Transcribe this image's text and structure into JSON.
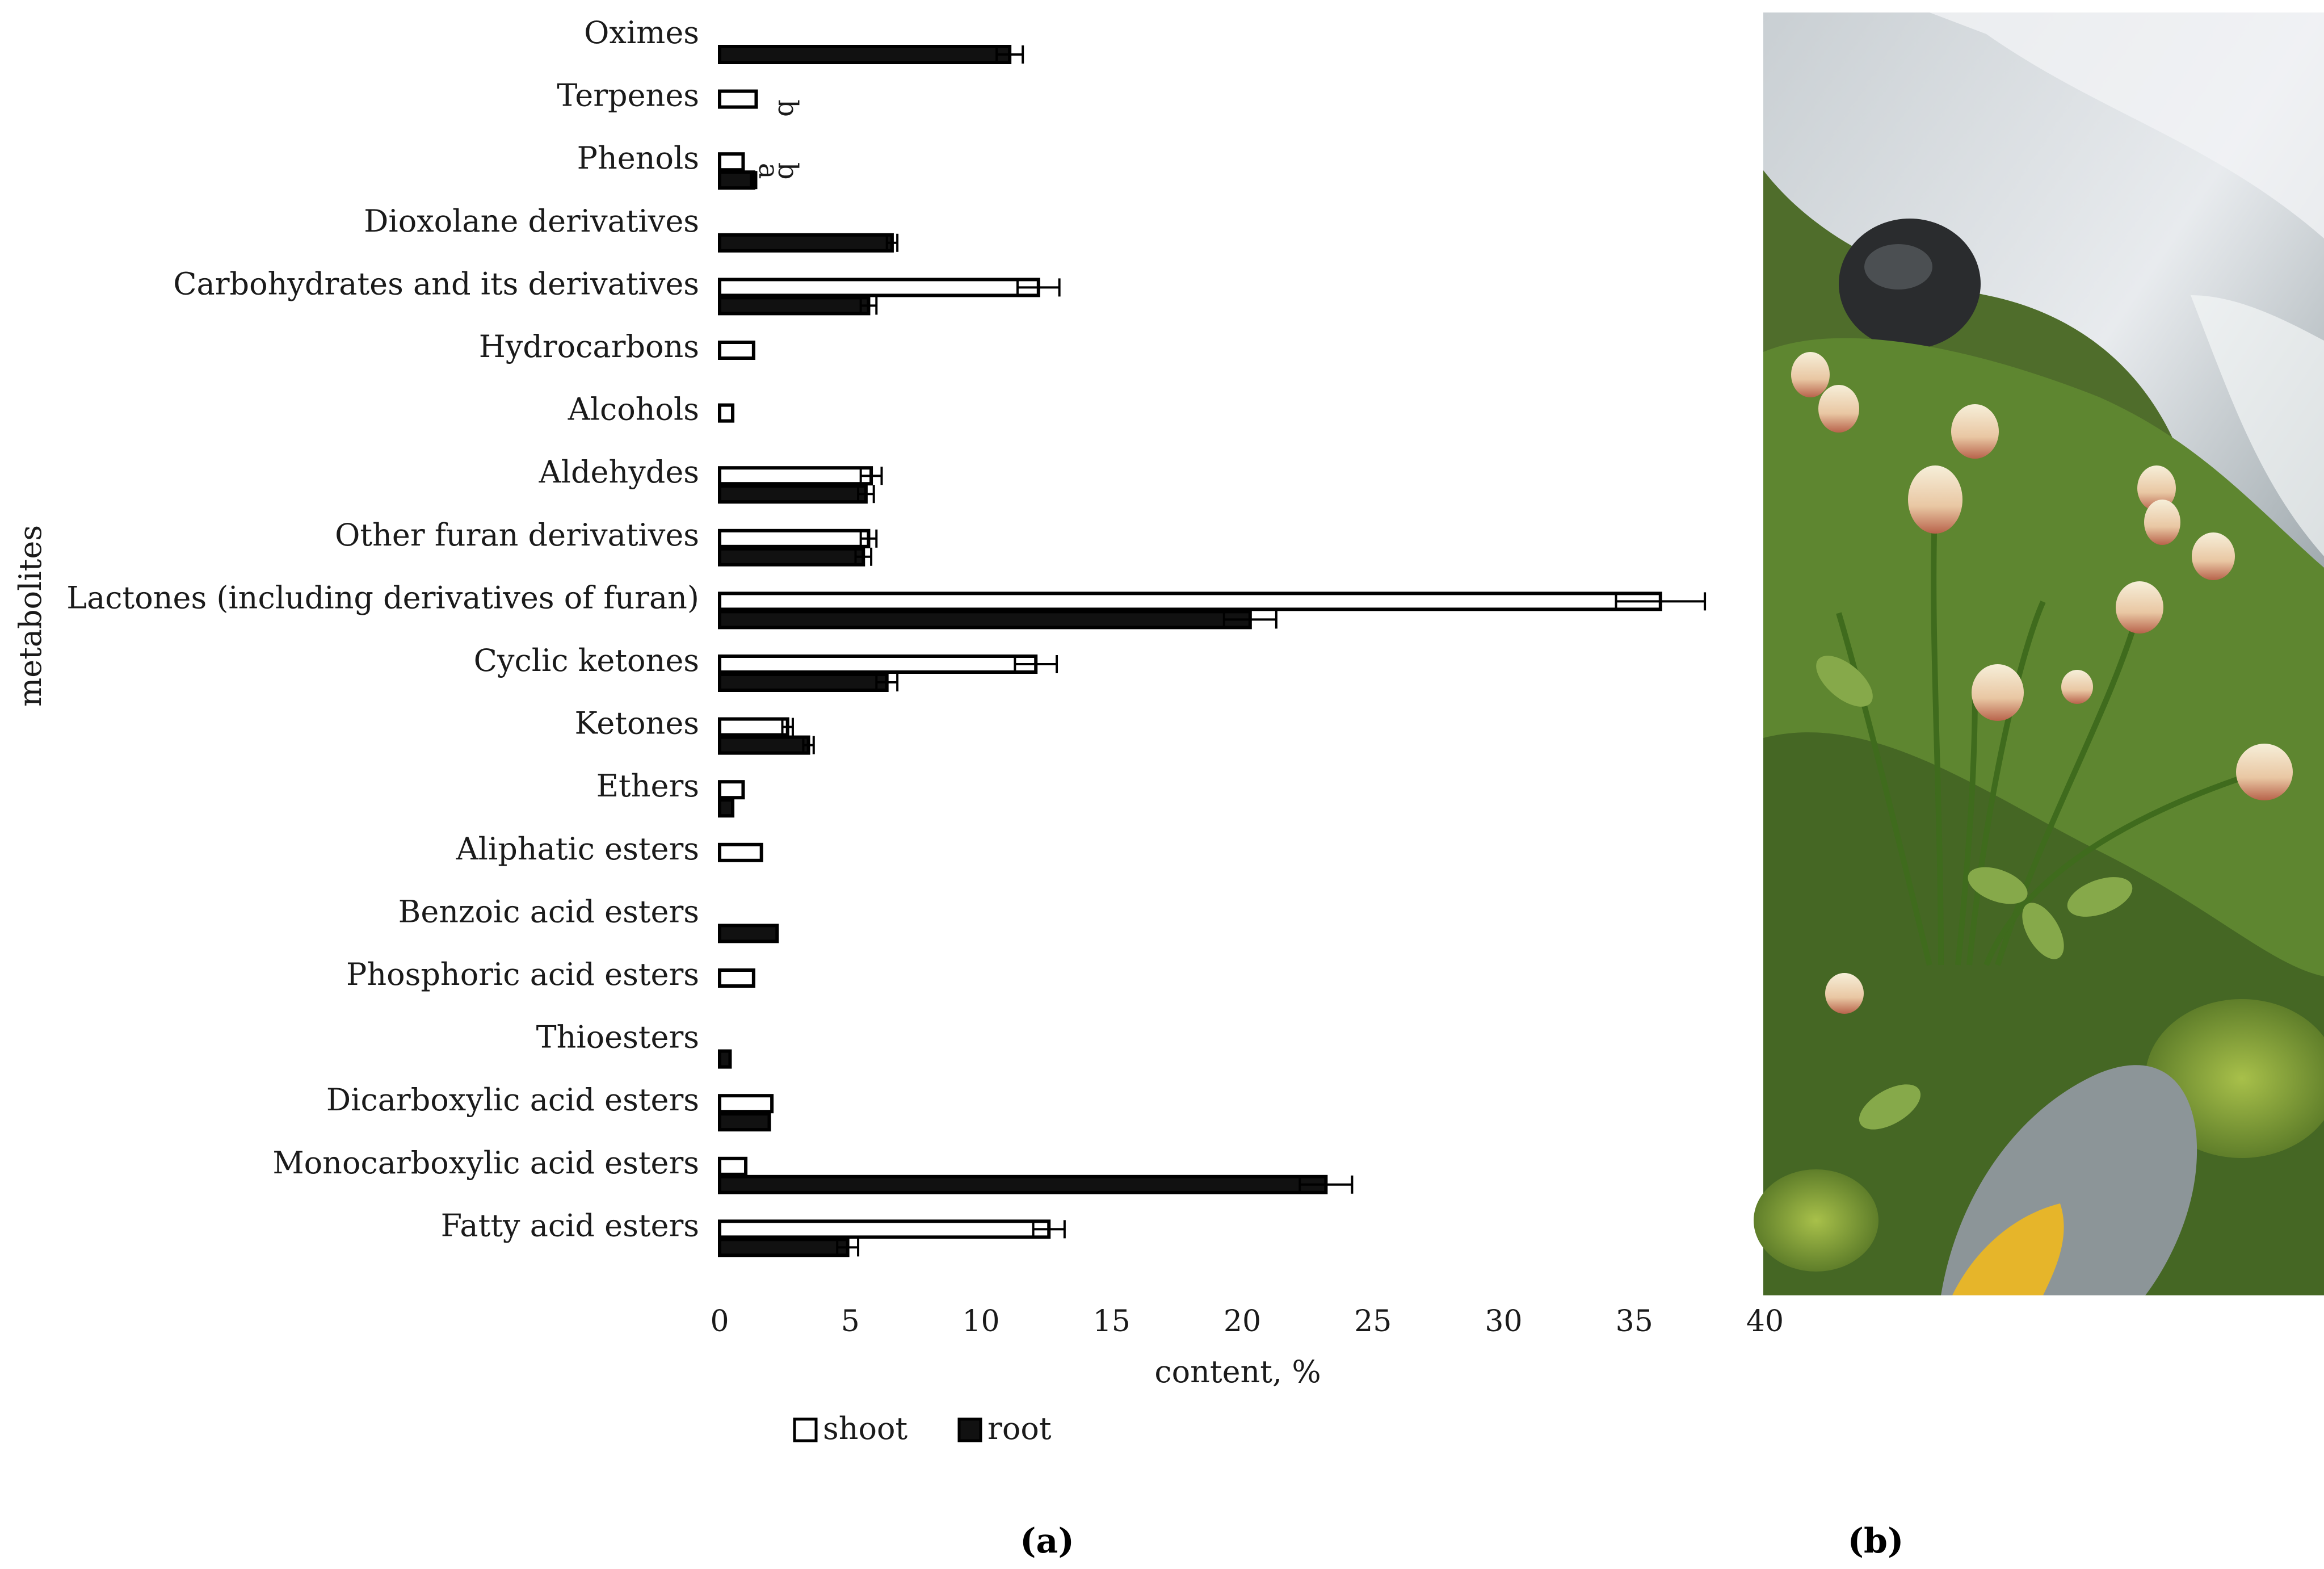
{
  "chart_data": {
    "type": "bar",
    "orientation": "horizontal",
    "title": "",
    "xlabel": "content, %",
    "ylabel": "metabolites",
    "xlim": [
      0,
      40
    ],
    "xticks": [
      0,
      5,
      10,
      15,
      20,
      25,
      30,
      35,
      40
    ],
    "categories": [
      "Oximes",
      "Terpenes",
      "Phenols",
      "Dioxolane derivatives",
      "Carbohydrates and its derivatives",
      "Hydrocarbons",
      "Alcohols",
      "Aldehydes",
      "Other furan derivatives",
      "Lactones (including derivatives of furan)",
      "Cyclic ketones",
      "Ketones",
      "Ethers",
      "Aliphatic esters",
      "Benzoic acid esters",
      "Phosphoric acid esters",
      "Thioesters",
      "Dicarboxylic acid esters",
      "Monocarboxylic acid esters",
      "Fatty acid esters"
    ],
    "series": [
      {
        "name": "shoot",
        "color": "#ffffff",
        "values": [
          0,
          1.4,
          0.9,
          0,
          12.2,
          1.3,
          0.5,
          5.8,
          5.7,
          36.0,
          12.1,
          2.6,
          0.9,
          1.6,
          0,
          1.3,
          0,
          2.0,
          1.0,
          12.6
        ],
        "errors": [
          0,
          0,
          0,
          0,
          0.8,
          0,
          0,
          0.4,
          0.3,
          1.7,
          0.8,
          0.2,
          0,
          0,
          0,
          0,
          0,
          0,
          0,
          0.6
        ]
      },
      {
        "name": "root",
        "color": "#111111",
        "values": [
          11.1,
          0,
          1.3,
          6.6,
          5.7,
          0,
          0,
          5.6,
          5.5,
          20.3,
          6.4,
          3.4,
          0.5,
          0,
          2.2,
          0,
          0.4,
          1.9,
          23.2,
          4.9
        ],
        "errors": [
          0.5,
          0,
          0.1,
          0.2,
          0.3,
          0,
          0,
          0.3,
          0.3,
          1.0,
          0.4,
          0.2,
          0,
          0,
          0,
          0,
          0,
          0,
          1.0,
          0.4
        ]
      }
    ],
    "annotations": [
      {
        "category": "Terpenes",
        "text": "b"
      },
      {
        "category": "Phenols",
        "text": "a"
      },
      {
        "category": "Phenols",
        "text": "b"
      }
    ],
    "legend": {
      "position": "bottom",
      "items": [
        "shoot",
        "root"
      ]
    },
    "grid": false
  },
  "panels": {
    "a_label": "(a)",
    "b_label": "(b)"
  },
  "photo": {
    "subject": "flowering plant with cream-pink flower heads among rocks and grasses beside a stream"
  }
}
